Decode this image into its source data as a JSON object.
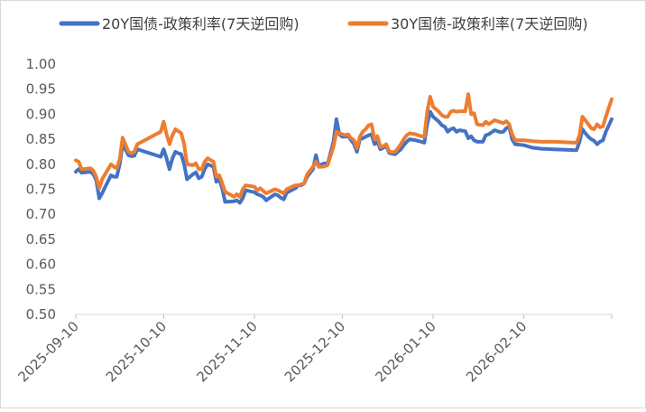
{
  "chart_data": {
    "type": "line",
    "title": "",
    "xlabel": "",
    "ylabel": "",
    "ylim": [
      0.5,
      1.0
    ],
    "yticks": [
      "0.50",
      "0.55",
      "0.60",
      "0.65",
      "0.70",
      "0.75",
      "0.80",
      "0.85",
      "0.90",
      "0.95",
      "1.00"
    ],
    "xticks": [
      "2025-09-10",
      "2025-10-10",
      "2025-11-10",
      "2025-12-10",
      "2026-01-10",
      "2026-02-10"
    ],
    "xlim": [
      "2025-09-10",
      "2026-03-12"
    ],
    "grid": false,
    "legend": "top",
    "series": [
      {
        "name": "20Y国债-政策利率(7天逆回购)",
        "color": "#4472c4",
        "points": [
          [
            "2025-09-10",
            0.785
          ],
          [
            "2025-09-11",
            0.79
          ],
          [
            "2025-09-12",
            0.783
          ],
          [
            "2025-09-15",
            0.785
          ],
          [
            "2025-09-16",
            0.78
          ],
          [
            "2025-09-17",
            0.768
          ],
          [
            "2025-09-18",
            0.732
          ],
          [
            "2025-09-19",
            0.742
          ],
          [
            "2025-09-22",
            0.778
          ],
          [
            "2025-09-23",
            0.775
          ],
          [
            "2025-09-24",
            0.775
          ],
          [
            "2025-09-25",
            0.8
          ],
          [
            "2025-09-26",
            0.84
          ],
          [
            "2025-09-28",
            0.818
          ],
          [
            "2025-09-29",
            0.816
          ],
          [
            "2025-09-30",
            0.817
          ],
          [
            "2025-10-01",
            0.83
          ],
          [
            "2025-10-09",
            0.815
          ],
          [
            "2025-10-10",
            0.83
          ],
          [
            "2025-10-11",
            0.812
          ],
          [
            "2025-10-12",
            0.79
          ],
          [
            "2025-10-13",
            0.812
          ],
          [
            "2025-10-14",
            0.825
          ],
          [
            "2025-10-15",
            0.822
          ],
          [
            "2025-10-16",
            0.82
          ],
          [
            "2025-10-17",
            0.8
          ],
          [
            "2025-10-18",
            0.77
          ],
          [
            "2025-10-20",
            0.78
          ],
          [
            "2025-10-21",
            0.784
          ],
          [
            "2025-10-22",
            0.772
          ],
          [
            "2025-10-23",
            0.775
          ],
          [
            "2025-10-24",
            0.79
          ],
          [
            "2025-10-25",
            0.8
          ],
          [
            "2025-10-27",
            0.795
          ],
          [
            "2025-10-28",
            0.765
          ],
          [
            "2025-10-29",
            0.77
          ],
          [
            "2025-10-30",
            0.752
          ],
          [
            "2025-10-31",
            0.725
          ],
          [
            "2025-11-03",
            0.726
          ],
          [
            "2025-11-04",
            0.728
          ],
          [
            "2025-11-05",
            0.723
          ],
          [
            "2025-11-06",
            0.732
          ],
          [
            "2025-11-07",
            0.748
          ],
          [
            "2025-11-10",
            0.744
          ],
          [
            "2025-11-11",
            0.74
          ],
          [
            "2025-11-12",
            0.738
          ],
          [
            "2025-11-13",
            0.735
          ],
          [
            "2025-11-14",
            0.728
          ],
          [
            "2025-11-17",
            0.74
          ],
          [
            "2025-11-18",
            0.738
          ],
          [
            "2025-11-19",
            0.733
          ],
          [
            "2025-11-20",
            0.73
          ],
          [
            "2025-11-21",
            0.743
          ],
          [
            "2025-11-24",
            0.752
          ],
          [
            "2025-11-25",
            0.758
          ],
          [
            "2025-11-26",
            0.758
          ],
          [
            "2025-11-27",
            0.762
          ],
          [
            "2025-11-28",
            0.775
          ],
          [
            "2025-11-30",
            0.79
          ],
          [
            "2025-12-01",
            0.818
          ],
          [
            "2025-12-02",
            0.795
          ],
          [
            "2025-12-03",
            0.8
          ],
          [
            "2025-12-04",
            0.802
          ],
          [
            "2025-12-05",
            0.8
          ],
          [
            "2025-12-07",
            0.845
          ],
          [
            "2025-12-08",
            0.89
          ],
          [
            "2025-12-09",
            0.86
          ],
          [
            "2025-12-10",
            0.855
          ],
          [
            "2025-12-11",
            0.855
          ],
          [
            "2025-12-12",
            0.857
          ],
          [
            "2025-12-13",
            0.848
          ],
          [
            "2025-12-14",
            0.84
          ],
          [
            "2025-12-15",
            0.825
          ],
          [
            "2025-12-16",
            0.85
          ],
          [
            "2025-12-17",
            0.852
          ],
          [
            "2025-12-18",
            0.855
          ],
          [
            "2025-12-19",
            0.858
          ],
          [
            "2025-12-20",
            0.86
          ],
          [
            "2025-12-21",
            0.84
          ],
          [
            "2025-12-22",
            0.845
          ],
          [
            "2025-12-23",
            0.83
          ],
          [
            "2025-12-24",
            0.833
          ],
          [
            "2025-12-25",
            0.837
          ],
          [
            "2025-12-26",
            0.823
          ],
          [
            "2025-12-27",
            0.821
          ],
          [
            "2025-12-28",
            0.82
          ],
          [
            "2025-12-29",
            0.825
          ],
          [
            "2025-12-30",
            0.83
          ],
          [
            "2025-12-31",
            0.838
          ],
          [
            "2026-01-01",
            0.845
          ],
          [
            "2026-01-02",
            0.85
          ],
          [
            "2026-01-04",
            0.848
          ],
          [
            "2026-01-06",
            0.845
          ],
          [
            "2026-01-07",
            0.843
          ],
          [
            "2026-01-08",
            0.88
          ],
          [
            "2026-01-09",
            0.905
          ],
          [
            "2026-01-10",
            0.895
          ],
          [
            "2026-01-12",
            0.885
          ],
          [
            "2026-01-13",
            0.878
          ],
          [
            "2026-01-14",
            0.875
          ],
          [
            "2026-01-15",
            0.865
          ],
          [
            "2026-01-16",
            0.87
          ],
          [
            "2026-01-17",
            0.872
          ],
          [
            "2026-01-18",
            0.865
          ],
          [
            "2026-01-19",
            0.868
          ],
          [
            "2026-01-21",
            0.866
          ],
          [
            "2026-01-22",
            0.852
          ],
          [
            "2026-01-23",
            0.856
          ],
          [
            "2026-01-24",
            0.848
          ],
          [
            "2026-01-25",
            0.845
          ],
          [
            "2026-01-27",
            0.845
          ],
          [
            "2026-01-28",
            0.858
          ],
          [
            "2026-01-29",
            0.86
          ],
          [
            "2026-01-31",
            0.868
          ],
          [
            "2026-02-02",
            0.864
          ],
          [
            "2026-02-03",
            0.865
          ],
          [
            "2026-02-04",
            0.872
          ],
          [
            "2026-02-05",
            0.875
          ],
          [
            "2026-02-06",
            0.85
          ],
          [
            "2026-02-07",
            0.84
          ],
          [
            "2026-02-10",
            0.838
          ],
          [
            "2026-02-13",
            0.833
          ],
          [
            "2026-02-16",
            0.831
          ],
          [
            "2026-02-20",
            0.83
          ],
          [
            "2026-02-24",
            0.829
          ],
          [
            "2026-02-28",
            0.828
          ],
          [
            "2026-03-01",
            0.845
          ],
          [
            "2026-03-02",
            0.87
          ],
          [
            "2026-03-03",
            0.862
          ],
          [
            "2026-03-04",
            0.855
          ],
          [
            "2026-03-05",
            0.85
          ],
          [
            "2026-03-06",
            0.847
          ],
          [
            "2026-03-07",
            0.84
          ],
          [
            "2026-03-08",
            0.845
          ],
          [
            "2026-03-09",
            0.848
          ],
          [
            "2026-03-10",
            0.865
          ],
          [
            "2026-03-12",
            0.89
          ]
        ]
      },
      {
        "name": "30Y国债-政策利率(7天逆回购)",
        "color": "#ed7d31",
        "points": [
          [
            "2025-09-10",
            0.808
          ],
          [
            "2025-09-11",
            0.805
          ],
          [
            "2025-09-12",
            0.79
          ],
          [
            "2025-09-15",
            0.792
          ],
          [
            "2025-09-16",
            0.787
          ],
          [
            "2025-09-17",
            0.775
          ],
          [
            "2025-09-18",
            0.752
          ],
          [
            "2025-09-19",
            0.77
          ],
          [
            "2025-09-22",
            0.8
          ],
          [
            "2025-09-23",
            0.795
          ],
          [
            "2025-09-24",
            0.792
          ],
          [
            "2025-09-25",
            0.81
          ],
          [
            "2025-09-26",
            0.853
          ],
          [
            "2025-09-28",
            0.825
          ],
          [
            "2025-09-29",
            0.822
          ],
          [
            "2025-09-30",
            0.825
          ],
          [
            "2025-10-01",
            0.84
          ],
          [
            "2025-10-09",
            0.865
          ],
          [
            "2025-10-10",
            0.885
          ],
          [
            "2025-10-11",
            0.86
          ],
          [
            "2025-10-12",
            0.84
          ],
          [
            "2025-10-13",
            0.858
          ],
          [
            "2025-10-14",
            0.87
          ],
          [
            "2025-10-15",
            0.866
          ],
          [
            "2025-10-16",
            0.862
          ],
          [
            "2025-10-17",
            0.84
          ],
          [
            "2025-10-18",
            0.8
          ],
          [
            "2025-10-20",
            0.798
          ],
          [
            "2025-10-21",
            0.802
          ],
          [
            "2025-10-22",
            0.79
          ],
          [
            "2025-10-23",
            0.79
          ],
          [
            "2025-10-24",
            0.805
          ],
          [
            "2025-10-25",
            0.812
          ],
          [
            "2025-10-27",
            0.805
          ],
          [
            "2025-10-28",
            0.775
          ],
          [
            "2025-10-29",
            0.778
          ],
          [
            "2025-10-30",
            0.762
          ],
          [
            "2025-10-31",
            0.745
          ],
          [
            "2025-11-03",
            0.735
          ],
          [
            "2025-11-04",
            0.74
          ],
          [
            "2025-11-05",
            0.735
          ],
          [
            "2025-11-06",
            0.75
          ],
          [
            "2025-11-07",
            0.758
          ],
          [
            "2025-11-10",
            0.755
          ],
          [
            "2025-11-11",
            0.748
          ],
          [
            "2025-11-12",
            0.752
          ],
          [
            "2025-11-13",
            0.747
          ],
          [
            "2025-11-14",
            0.742
          ],
          [
            "2025-11-17",
            0.75
          ],
          [
            "2025-11-18",
            0.748
          ],
          [
            "2025-11-19",
            0.745
          ],
          [
            "2025-11-20",
            0.742
          ],
          [
            "2025-11-21",
            0.75
          ],
          [
            "2025-11-24",
            0.758
          ],
          [
            "2025-11-25",
            0.758
          ],
          [
            "2025-11-26",
            0.76
          ],
          [
            "2025-11-27",
            0.762
          ],
          [
            "2025-11-28",
            0.78
          ],
          [
            "2025-11-30",
            0.795
          ],
          [
            "2025-12-01",
            0.805
          ],
          [
            "2025-12-02",
            0.795
          ],
          [
            "2025-12-03",
            0.795
          ],
          [
            "2025-12-04",
            0.796
          ],
          [
            "2025-12-05",
            0.798
          ],
          [
            "2025-12-07",
            0.835
          ],
          [
            "2025-12-08",
            0.865
          ],
          [
            "2025-12-09",
            0.862
          ],
          [
            "2025-12-10",
            0.86
          ],
          [
            "2025-12-11",
            0.858
          ],
          [
            "2025-12-12",
            0.86
          ],
          [
            "2025-12-13",
            0.852
          ],
          [
            "2025-12-14",
            0.848
          ],
          [
            "2025-12-15",
            0.832
          ],
          [
            "2025-12-16",
            0.855
          ],
          [
            "2025-12-17",
            0.865
          ],
          [
            "2025-12-18",
            0.87
          ],
          [
            "2025-12-19",
            0.878
          ],
          [
            "2025-12-20",
            0.88
          ],
          [
            "2025-12-21",
            0.85
          ],
          [
            "2025-12-22",
            0.856
          ],
          [
            "2025-12-23",
            0.835
          ],
          [
            "2025-12-24",
            0.836
          ],
          [
            "2025-12-25",
            0.84
          ],
          [
            "2025-12-26",
            0.826
          ],
          [
            "2025-12-27",
            0.824
          ],
          [
            "2025-12-28",
            0.825
          ],
          [
            "2025-12-29",
            0.832
          ],
          [
            "2025-12-30",
            0.84
          ],
          [
            "2025-12-31",
            0.85
          ],
          [
            "2026-01-01",
            0.858
          ],
          [
            "2026-01-02",
            0.862
          ],
          [
            "2026-01-04",
            0.86
          ],
          [
            "2026-01-06",
            0.856
          ],
          [
            "2026-01-07",
            0.855
          ],
          [
            "2026-01-08",
            0.905
          ],
          [
            "2026-01-09",
            0.935
          ],
          [
            "2026-01-10",
            0.915
          ],
          [
            "2026-01-12",
            0.905
          ],
          [
            "2026-01-13",
            0.898
          ],
          [
            "2026-01-14",
            0.895
          ],
          [
            "2026-01-15",
            0.895
          ],
          [
            "2026-01-16",
            0.905
          ],
          [
            "2026-01-17",
            0.907
          ],
          [
            "2026-01-18",
            0.905
          ],
          [
            "2026-01-19",
            0.906
          ],
          [
            "2026-01-21",
            0.906
          ],
          [
            "2026-01-22",
            0.94
          ],
          [
            "2026-01-23",
            0.9
          ],
          [
            "2026-01-24",
            0.902
          ],
          [
            "2026-01-25",
            0.88
          ],
          [
            "2026-01-27",
            0.878
          ],
          [
            "2026-01-28",
            0.885
          ],
          [
            "2026-01-29",
            0.88
          ],
          [
            "2026-01-31",
            0.888
          ],
          [
            "2026-02-02",
            0.884
          ],
          [
            "2026-02-03",
            0.882
          ],
          [
            "2026-02-04",
            0.886
          ],
          [
            "2026-02-05",
            0.88
          ],
          [
            "2026-02-06",
            0.86
          ],
          [
            "2026-02-07",
            0.848
          ],
          [
            "2026-02-10",
            0.848
          ],
          [
            "2026-02-13",
            0.846
          ],
          [
            "2026-02-16",
            0.845
          ],
          [
            "2026-02-20",
            0.845
          ],
          [
            "2026-02-24",
            0.844
          ],
          [
            "2026-02-28",
            0.843
          ],
          [
            "2026-03-01",
            0.858
          ],
          [
            "2026-03-02",
            0.895
          ],
          [
            "2026-03-03",
            0.888
          ],
          [
            "2026-03-04",
            0.88
          ],
          [
            "2026-03-05",
            0.872
          ],
          [
            "2026-03-06",
            0.87
          ],
          [
            "2026-03-07",
            0.88
          ],
          [
            "2026-03-08",
            0.874
          ],
          [
            "2026-03-09",
            0.876
          ],
          [
            "2026-03-10",
            0.895
          ],
          [
            "2026-03-12",
            0.93
          ]
        ]
      }
    ]
  }
}
